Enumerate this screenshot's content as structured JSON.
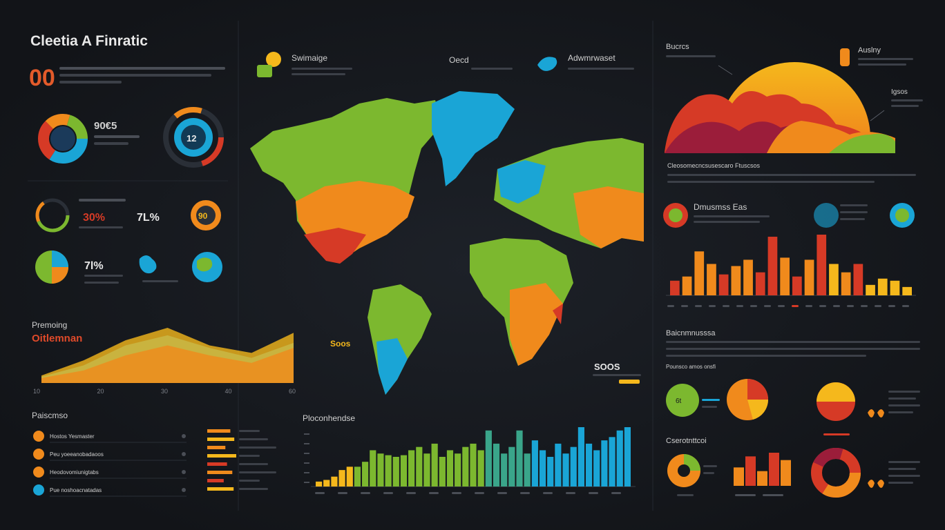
{
  "header": {
    "title": "Cleetia A Finratic",
    "big_number": "00"
  },
  "left_panel": {
    "donut_labels": [
      "90€5",
      "12"
    ],
    "gauge_values": [
      "30%",
      "7L%",
      "90",
      "7l%"
    ],
    "trend_label": "Premoing",
    "trend_value": "Oitlemnan",
    "trend_axis": [
      "10",
      "20",
      "30",
      "40",
      "60"
    ],
    "trend_chart": {
      "type": "area",
      "x": [
        0,
        1,
        2,
        3,
        4,
        5,
        6
      ],
      "series": [
        {
          "values": [
            5,
            14,
            30,
            38,
            28,
            20,
            32
          ]
        },
        {
          "values": [
            6,
            18,
            34,
            44,
            30,
            24,
            40
          ]
        },
        {
          "values": [
            4,
            10,
            22,
            30,
            22,
            16,
            28
          ]
        }
      ]
    },
    "list_title": "Paiscmso",
    "list_items": [
      "Hostos Yesmaster",
      "Peu yoeeanobadaoos",
      "Heodovomiunigtabs",
      "Pue noshoacnatadas"
    ],
    "hbar_chart": {
      "type": "bar",
      "values": [
        70,
        82,
        55,
        88,
        60,
        76,
        50,
        80
      ]
    }
  },
  "map_panel": {
    "headers": [
      "Swimaige",
      "Oecd",
      "Adwmrwaset"
    ],
    "callouts": [
      "Soos",
      "SOOS"
    ]
  },
  "bottom_bars": {
    "title": "Ploconhendse",
    "chart": {
      "type": "bar",
      "values": [
        3,
        4,
        6,
        10,
        12,
        12,
        15,
        22,
        20,
        19,
        18,
        19,
        22,
        24,
        20,
        26,
        18,
        22,
        20,
        24,
        26,
        22,
        34,
        26,
        20,
        24,
        34,
        20,
        28,
        22,
        18,
        26,
        20,
        24,
        36,
        26,
        22,
        28,
        30,
        34,
        36
      ]
    }
  },
  "right_panel": {
    "header_labels": [
      "Bucrcs",
      "Auslny",
      "Igsos"
    ],
    "caption": "Cleosomecncsusescaro Ftuscsos",
    "icon_labels": [
      "Dmusmss Eas"
    ],
    "bar_chart": {
      "type": "bar",
      "values": [
        14,
        18,
        42,
        30,
        20,
        28,
        34,
        22,
        56,
        36,
        18,
        34,
        58,
        30,
        22,
        30,
        10,
        16,
        14,
        8
      ]
    },
    "text_heading": "Baicnmnusssa",
    "pie_row_label": "Pounsco amos onsfi",
    "pie_values": [
      "6t"
    ],
    "small_bar_chart": {
      "type": "bar",
      "values": [
        50,
        80,
        40,
        90,
        70
      ]
    },
    "bottom_heading": "Cserotnttcoi"
  },
  "colors": {
    "background": "#15181d",
    "green": "#7cb82f",
    "blue": "#1aa5d6",
    "orange": "#f08a1c",
    "red": "#d63a26",
    "yellow": "#f5b81c"
  }
}
